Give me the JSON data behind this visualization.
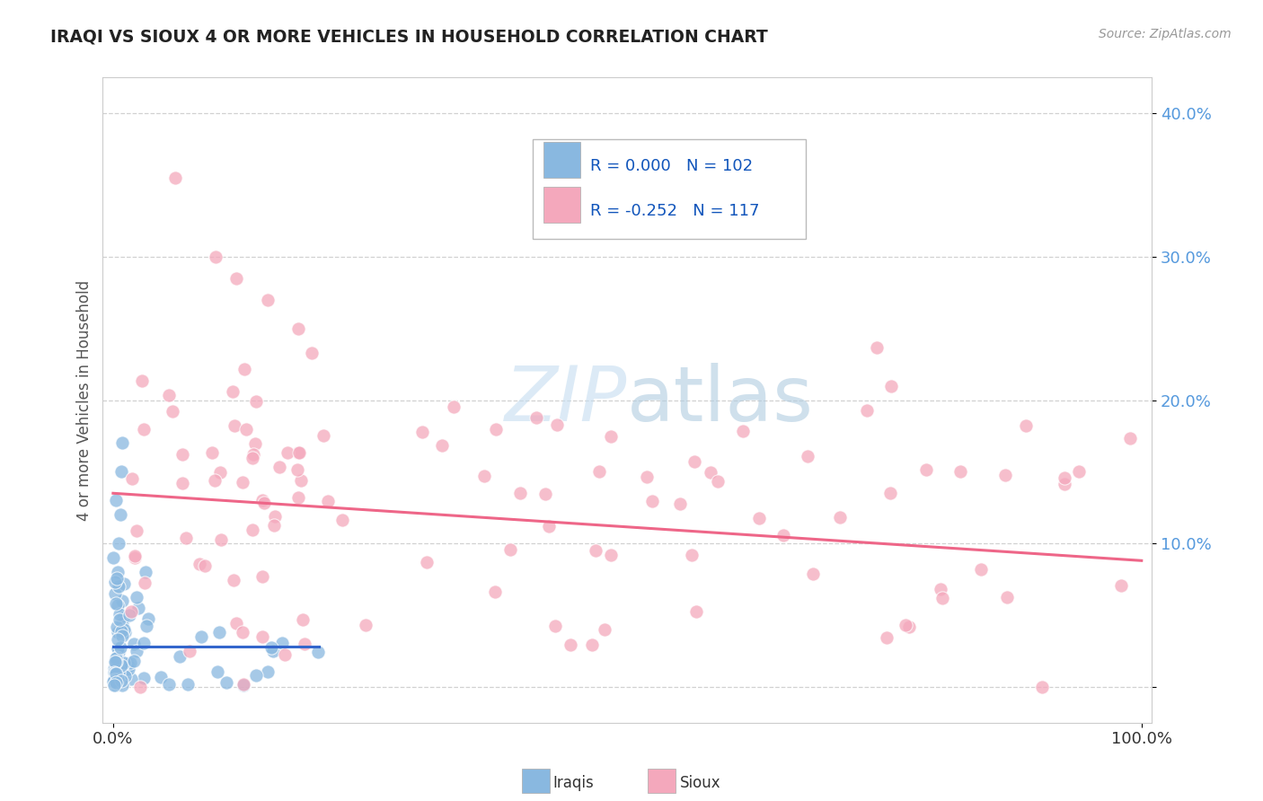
{
  "title": "IRAQI VS SIOUX 4 OR MORE VEHICLES IN HOUSEHOLD CORRELATION CHART",
  "source": "Source: ZipAtlas.com",
  "ylabel": "4 or more Vehicles in Household",
  "iraqis_color": "#89b8e0",
  "iraqis_edge": "#6699cc",
  "sioux_color": "#f4a8bc",
  "sioux_edge": "#e87090",
  "iraqis_line_color": "#3366cc",
  "sioux_line_color": "#ee6688",
  "watermark_color": "#c5ddf0",
  "background_color": "#ffffff",
  "grid_color": "#cccccc",
  "title_color": "#222222",
  "source_color": "#999999",
  "ylabel_color": "#555555",
  "ytick_color": "#5599dd",
  "xtick_color": "#333333",
  "legend_text_color": "#1155bb",
  "xlim": [
    -0.01,
    1.01
  ],
  "ylim": [
    -0.025,
    0.425
  ],
  "ytick_vals": [
    0.0,
    0.1,
    0.2,
    0.3,
    0.4
  ],
  "ytick_labels": [
    "",
    "10.0%",
    "20.0%",
    "30.0%",
    "40.0%"
  ],
  "xtick_vals": [
    0.0,
    1.0
  ],
  "xtick_labels": [
    "0.0%",
    "100.0%"
  ],
  "sioux_line_x0": 0.0,
  "sioux_line_y0": 0.135,
  "sioux_line_x1": 1.0,
  "sioux_line_y1": 0.088,
  "iraqi_line_y": 0.028,
  "iraqi_line_x_solid_end": 0.2
}
